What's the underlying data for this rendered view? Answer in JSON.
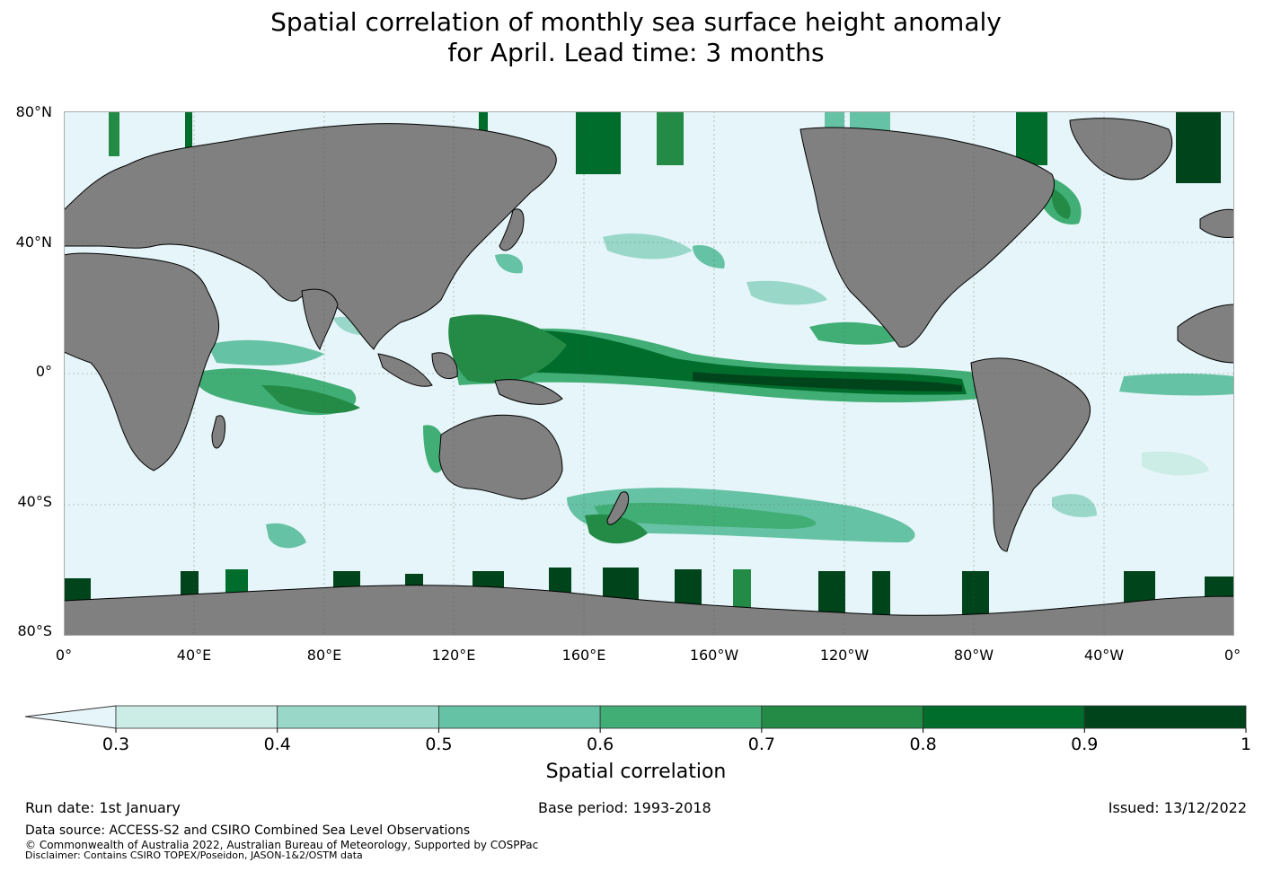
{
  "title": {
    "line1": "Spatial correlation of monthly sea surface height anomaly",
    "line2": "for April. Lead time: 3 months"
  },
  "map": {
    "lat_ticks": [
      "80°N",
      "40°N",
      "0°",
      "40°S",
      "80°S"
    ],
    "lon_ticks": [
      "0°",
      "40°E",
      "80°E",
      "120°E",
      "160°E",
      "160°W",
      "120°W",
      "80°W",
      "40°W",
      "0°"
    ],
    "colors": {
      "ocean": "#e6f5f9",
      "land": "#808080",
      "coast": "#000000"
    }
  },
  "colorbar": {
    "title": "Spatial correlation",
    "ticks": [
      "0.3",
      "0.4",
      "0.5",
      "0.6",
      "0.7",
      "0.8",
      "0.9",
      "1"
    ],
    "colors": [
      "#ccece6",
      "#99d8c9",
      "#66c2a4",
      "#41ae76",
      "#238b45",
      "#006d2c",
      "#00441b"
    ],
    "under_color": "#e6f5f9"
  },
  "footer": {
    "run_date": "Run date: 1st January",
    "base_period": "Base period: 1993-2018",
    "issued": "Issued: 13/12/2022",
    "data_source": "Data source: ACCESS-S2 and CSIRO Combined Sea Level Observations",
    "copyright": "© Commonwealth of Australia 2022, Australian Bureau of Meteorology, Supported by COSPPac",
    "disclaimer": "Disclaimer: Contains CSIRO TOPEX/Poseidon, JASON-1&2/OSTM data"
  }
}
